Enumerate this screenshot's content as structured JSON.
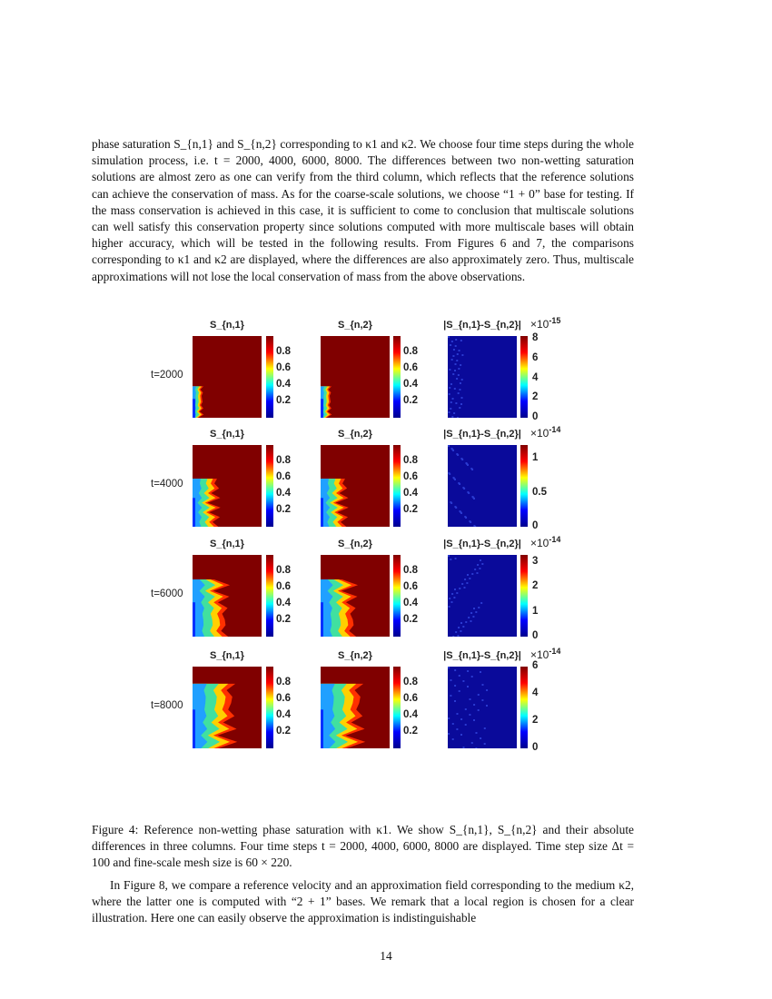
{
  "paragraph1": "phase saturation S_{n,1} and S_{n,2} corresponding to κ1 and κ2. We choose four time steps during the whole simulation process, i.e. t = 2000, 4000, 6000, 8000. The differences between two non-wetting saturation solutions are almost zero as one can verify from the third column, which reflects that the reference solutions can achieve the conservation of mass. As for the coarse-scale solutions, we choose “1 + 0” base for testing. If the mass conservation is achieved in this case, it is sufficient to come to conclusion that multiscale solutions can well satisfy this conservation property since solutions computed with more multiscale bases will obtain higher accuracy, which will be tested in the following results. From Figures 6 and 7, the comparisons corresponding to κ1 and κ2 are displayed, where the differences are also approximately zero. Thus, multiscale approximations will not lose the local conservation of mass from the above observations.",
  "figure": {
    "column_titles": [
      "S_{n,1}",
      "S_{n,2}",
      "|S_{n,1}-S_{n,2}|"
    ],
    "colorbar_ticks_saturation": [
      "0.2",
      "0.4",
      "0.6",
      "0.8"
    ],
    "rows": [
      {
        "label": "t=2000",
        "diff_multiplier": "×10",
        "diff_exponent": "-15",
        "diff_max": 8.3,
        "diff_ticks": [
          "0",
          "2",
          "4",
          "6",
          "8"
        ],
        "spread": 0.18
      },
      {
        "label": "t=4000",
        "diff_multiplier": "×10",
        "diff_exponent": "-14",
        "diff_max": 1.2,
        "diff_ticks": [
          "0",
          "0.5",
          "1"
        ],
        "spread": 0.45
      },
      {
        "label": "t=6000",
        "diff_multiplier": "×10",
        "diff_exponent": "-14",
        "diff_max": 3.3,
        "diff_ticks": [
          "0",
          "1",
          "2",
          "3"
        ],
        "spread": 0.6
      },
      {
        "label": "t=8000",
        "diff_multiplier": "×10",
        "diff_exponent": "-14",
        "diff_max": 6,
        "diff_ticks": [
          "0",
          "2",
          "4",
          "6"
        ],
        "spread": 0.72
      }
    ],
    "colormap": [
      "#00008f",
      "#0000ff",
      "#00ffff",
      "#ffff00",
      "#ff0000",
      "#800000"
    ]
  },
  "caption": "Figure 4: Reference non-wetting phase saturation with κ1. We show S_{n,1}, S_{n,2} and their absolute differences in three columns. Four time steps t = 2000, 4000, 6000, 8000 are displayed. Time step size Δt = 100 and fine-scale mesh size is 60 × 220.",
  "paragraph2": "In Figure 8, we compare a reference velocity and an approximation field corresponding to the medium κ2, where the latter one is computed with “2 + 1” bases. We remark that a local region is chosen for a clear illustration. Here one can easily observe the approximation is indistinguishable",
  "page_number": "14"
}
